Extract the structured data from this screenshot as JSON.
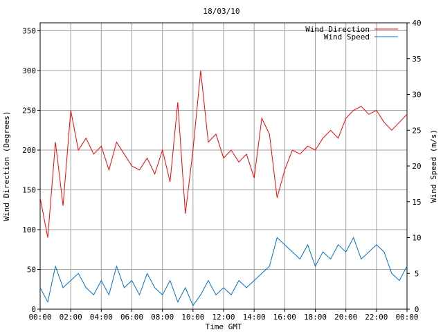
{
  "chart_data": {
    "type": "line",
    "title": "18/03/10",
    "xlabel": "Time GMT",
    "ylabel_left": "Wind Direction (Degrees)",
    "ylabel_right": "Wind Speed (m/s)",
    "x_ticks": [
      "00:00",
      "02:00",
      "04:00",
      "06:00",
      "08:00",
      "10:00",
      "12:00",
      "14:00",
      "16:00",
      "18:00",
      "20:00",
      "22:00",
      "00:00"
    ],
    "y_left_ticks": [
      "0",
      "50",
      "100",
      "150",
      "200",
      "250",
      "300",
      "350"
    ],
    "y_right_ticks": [
      "0",
      "5",
      "10",
      "15",
      "20",
      "25",
      "30",
      "35",
      "40"
    ],
    "x_range_hours": [
      0,
      24
    ],
    "y_left_range": [
      0,
      360
    ],
    "y_right_range": [
      0,
      40
    ],
    "grid": true,
    "legend_position": "top-right",
    "colors": {
      "direction": "#ff0000",
      "speed": "#0070cc",
      "grid": "#a0a0a0"
    },
    "series": [
      {
        "name": "Wind Direction",
        "axis": "left",
        "x": [
          0,
          0.5,
          1,
          1.5,
          2,
          2.5,
          3,
          3.5,
          4,
          4.5,
          5,
          5.5,
          6,
          6.5,
          7,
          7.5,
          8,
          8.5,
          9,
          9.5,
          10,
          10.5,
          11,
          11.5,
          12,
          12.5,
          13,
          13.5,
          14,
          14.5,
          15,
          15.5,
          16,
          16.5,
          17,
          17.5,
          18,
          18.5,
          19,
          19.5,
          20,
          20.5,
          21,
          21.5,
          22,
          22.5,
          23,
          23.5,
          24
        ],
        "values": [
          140,
          90,
          210,
          130,
          250,
          200,
          215,
          195,
          205,
          175,
          210,
          195,
          180,
          175,
          190,
          170,
          200,
          160,
          260,
          120,
          200,
          300,
          210,
          220,
          190,
          200,
          185,
          195,
          165,
          240,
          220,
          140,
          175,
          200,
          195,
          205,
          200,
          215,
          225,
          215,
          240,
          250,
          255,
          245,
          250,
          235,
          225,
          235,
          245
        ]
      },
      {
        "name": "Wind Speed",
        "axis": "right",
        "x": [
          0,
          0.5,
          1,
          1.5,
          2,
          2.5,
          3,
          3.5,
          4,
          4.5,
          5,
          5.5,
          6,
          6.5,
          7,
          7.5,
          8,
          8.5,
          9,
          9.5,
          10,
          10.5,
          11,
          11.5,
          12,
          12.5,
          13,
          13.5,
          14,
          14.5,
          15,
          15.5,
          16,
          16.5,
          17,
          17.5,
          18,
          18.5,
          19,
          19.5,
          20,
          20.5,
          21,
          21.5,
          22,
          22.5,
          23,
          23.5,
          24
        ],
        "values": [
          3,
          1,
          6,
          3,
          4,
          5,
          3,
          2,
          4,
          2,
          6,
          3,
          4,
          2,
          5,
          3,
          2,
          4,
          1,
          3,
          0.5,
          2,
          4,
          2,
          3,
          2,
          4,
          3,
          4,
          5,
          6,
          10,
          9,
          8,
          7,
          9,
          6,
          8,
          7,
          9,
          8,
          10,
          7,
          8,
          9,
          8,
          5,
          4,
          6
        ]
      }
    ]
  }
}
